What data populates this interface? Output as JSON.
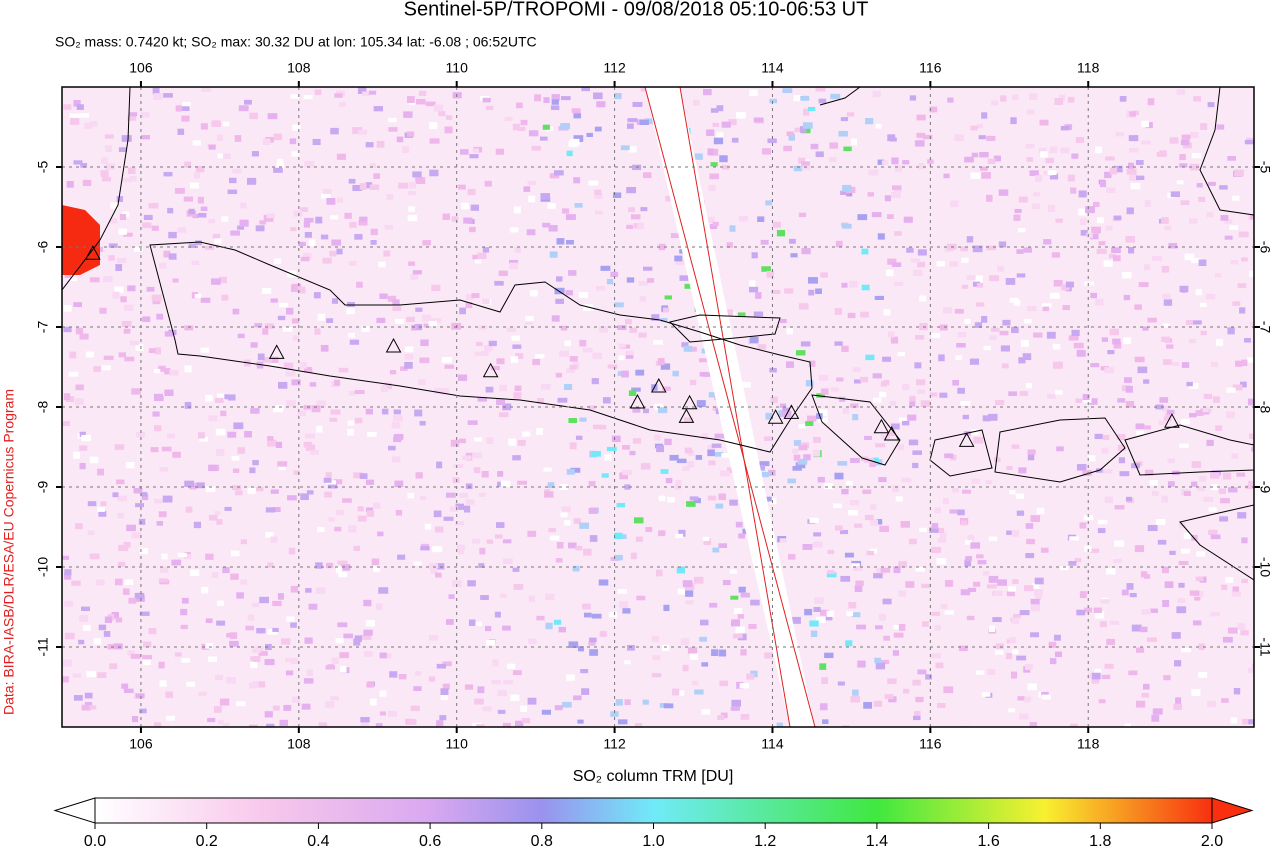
{
  "chart_data": {
    "type": "map",
    "title": "Sentinel-5P/TROPOMI - 09/08/2018 05:10-06:53 UT",
    "subtitle": "SO₂ mass: 0.7420 kt; SO₂ max: 30.32 DU at lon: 105.34 lat: -6.08 ; 06:52UTC",
    "credit": "Data: BIRA-IASB/DLR/ESA/EU Copernicus Program",
    "xlim": [
      105,
      120.1
    ],
    "ylim": [
      -12,
      -4
    ],
    "xticks": [
      106,
      108,
      110,
      112,
      114,
      116,
      118
    ],
    "yticks": [
      -5,
      -6,
      -7,
      -8,
      -9,
      -10,
      -11
    ],
    "grid": true,
    "volcanoes": {
      "x": [
        105.39,
        107.72,
        109.2,
        110.43,
        112.29,
        112.56,
        112.95,
        112.91,
        114.04,
        114.24,
        115.38,
        115.51,
        116.46,
        119.06
      ],
      "y": [
        -6.09,
        -7.33,
        -7.25,
        -7.56,
        -7.95,
        -7.75,
        -7.96,
        -8.13,
        -8.14,
        -8.08,
        -8.26,
        -8.35,
        -8.43,
        -8.19
      ]
    },
    "colorbar": {
      "label": "SO₂ column TRM [DU]",
      "lim": [
        0,
        2
      ],
      "ticks": [
        {
          "value": 0,
          "label": "0.0"
        },
        {
          "value": 0.2,
          "label": "0.2"
        },
        {
          "value": 0.4,
          "label": "0.4"
        },
        {
          "value": 0.6,
          "label": "0.6"
        },
        {
          "value": 0.8,
          "label": "0.8"
        },
        {
          "value": 1,
          "label": "1.0"
        },
        {
          "value": 1.2,
          "label": "1.2"
        },
        {
          "value": 1.4,
          "label": "1.4"
        },
        {
          "value": 1.6,
          "label": "1.6"
        },
        {
          "value": 1.8,
          "label": "1.8"
        },
        {
          "value": 2,
          "label": "2.0"
        }
      ]
    }
  }
}
